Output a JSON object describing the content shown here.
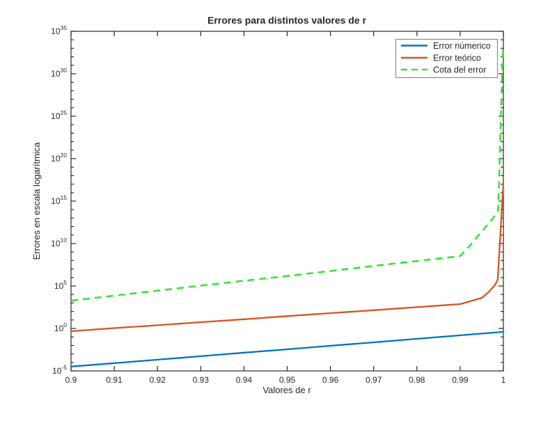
{
  "figure": {
    "title": "Errores para distintos valores de r",
    "xlabel": "Valores de r",
    "ylabel": "Errores en escala logarítmica",
    "background_color": "#ffffff",
    "axis_color": "#262626"
  },
  "axes": {
    "xlim": [
      0.9,
      1.0
    ],
    "y_scale": "log",
    "ylim_exponents": [
      -5,
      35
    ],
    "x_ticks": [
      {
        "value": 0.9,
        "label": "0.9"
      },
      {
        "value": 0.91,
        "label": "0.91"
      },
      {
        "value": 0.92,
        "label": "0.92"
      },
      {
        "value": 0.93,
        "label": "0.93"
      },
      {
        "value": 0.94,
        "label": "0.94"
      },
      {
        "value": 0.95,
        "label": "0.95"
      },
      {
        "value": 0.96,
        "label": "0.96"
      },
      {
        "value": 0.97,
        "label": "0.97"
      },
      {
        "value": 0.98,
        "label": "0.98"
      },
      {
        "value": 0.99,
        "label": "0.99"
      },
      {
        "value": 1.0,
        "label": "1"
      }
    ],
    "y_tick_exponents": [
      -5,
      0,
      5,
      10,
      15,
      20,
      25,
      30,
      35
    ],
    "y_tick_base": "10",
    "grid": false
  },
  "legend": {
    "position": "top-right",
    "entries": [
      {
        "label": "Error númerico",
        "color": "#0072BD",
        "style": "solid"
      },
      {
        "label": "Error teórico",
        "color": "#D95319",
        "style": "solid"
      },
      {
        "label": "Cota del error",
        "color": "#35E235",
        "style": "dashed"
      }
    ]
  },
  "chart_data": {
    "type": "line",
    "title": "Errores para distintos valores de r",
    "xlabel": "Valores de r",
    "ylabel": "Errores en escala logarítmica",
    "x_range": [
      0.9,
      1.0
    ],
    "y_scale": "log",
    "y_range": [
      1e-05,
      1e+35
    ],
    "grid": false,
    "legend_position": "top-right",
    "series": [
      {
        "name": "Error númerico",
        "color": "#0072BD",
        "style": "solid",
        "x": [
          0.9,
          0.91,
          0.92,
          0.93,
          0.94,
          0.95,
          0.96,
          0.97,
          0.98,
          0.99,
          1.0
        ],
        "y": [
          3.2e-05,
          8.1e-05,
          0.00021,
          0.00054,
          0.0014,
          0.0035,
          0.0091,
          0.023,
          0.06,
          0.155,
          0.4
        ]
      },
      {
        "name": "Error teórico",
        "color": "#D95319",
        "style": "solid",
        "x": [
          0.9,
          0.91,
          0.92,
          0.93,
          0.94,
          0.95,
          0.96,
          0.97,
          0.98,
          0.99,
          0.995,
          0.9965,
          0.998,
          0.9987,
          1.0
        ],
        "y": [
          0.47,
          1.1,
          2.4,
          5.5,
          12.0,
          28.0,
          63.0,
          140.0,
          320.0,
          740.0,
          4000.0,
          18000.0,
          120000.0,
          550000.0,
          1.6e+17
        ]
      },
      {
        "name": "Cota del error",
        "color": "#35E235",
        "style": "dashed",
        "x": [
          0.9,
          0.91,
          0.92,
          0.93,
          0.94,
          0.95,
          0.96,
          0.97,
          0.98,
          0.99,
          0.9925,
          0.995,
          0.9975,
          0.9988,
          0.9999
        ],
        "y": [
          1900.0,
          7200.0,
          28000.0,
          110000.0,
          410000.0,
          1500000.0,
          5900000.0,
          23000000.0,
          87000000.0,
          330000000.0,
          7900000000.0,
          250000000000.0,
          7900000000000.0,
          79000000000000.0,
          1.3e+33
        ]
      }
    ]
  }
}
